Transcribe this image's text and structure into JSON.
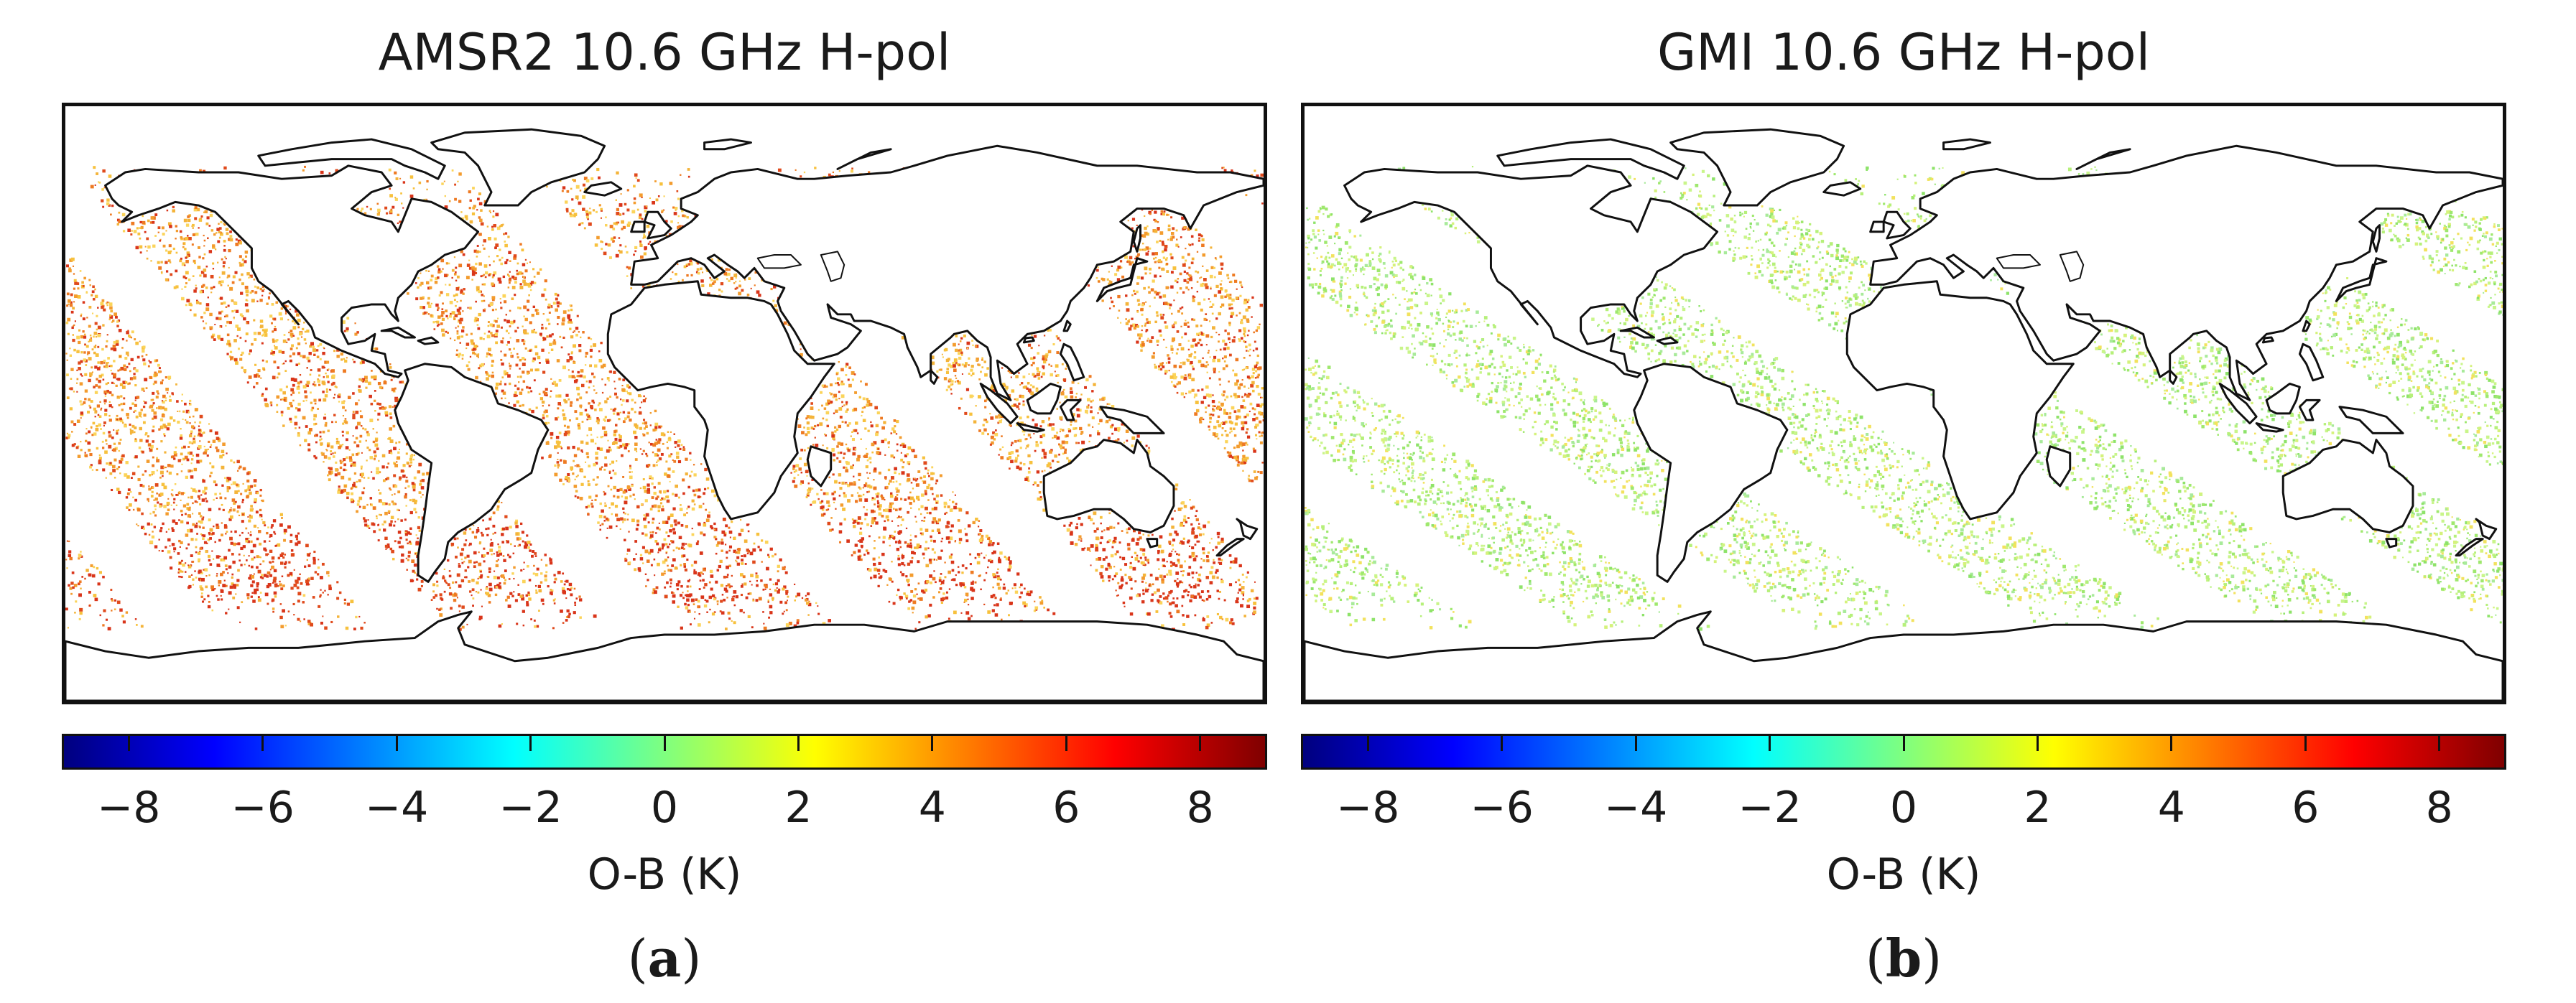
{
  "panels": [
    {
      "title": "AMSR2 10.6 GHz H-pol",
      "colorbar_label": "O-B (K)",
      "panel_label": "a",
      "scatter_palette": [
        "#f7c13d",
        "#f39c2e",
        "#ee7a22",
        "#f4b43a",
        "#e04a1c",
        "#fbd45a",
        "#d9351a"
      ]
    },
    {
      "title": "GMI 10.6 GHz H-pol",
      "colorbar_label": "O-B (K)",
      "panel_label": "b",
      "scatter_palette": [
        "#b6f07a",
        "#9fe86e",
        "#c9f58a",
        "#8ee36a",
        "#d5f27c",
        "#f2e25e",
        "#a8ea9a"
      ]
    }
  ],
  "colorbar": {
    "min": -9,
    "max": 9,
    "ticks": [
      -8,
      -6,
      -4,
      -2,
      0,
      2,
      4,
      6,
      8
    ],
    "tick_labels": [
      "−8",
      "−6",
      "−4",
      "−2",
      "0",
      "2",
      "4",
      "6",
      "8"
    ],
    "colors": [
      "#00007f",
      "#0000ff",
      "#007fff",
      "#00ffff",
      "#7fff7f",
      "#ffff00",
      "#ff7f00",
      "#ff0000",
      "#7f0000"
    ]
  }
}
